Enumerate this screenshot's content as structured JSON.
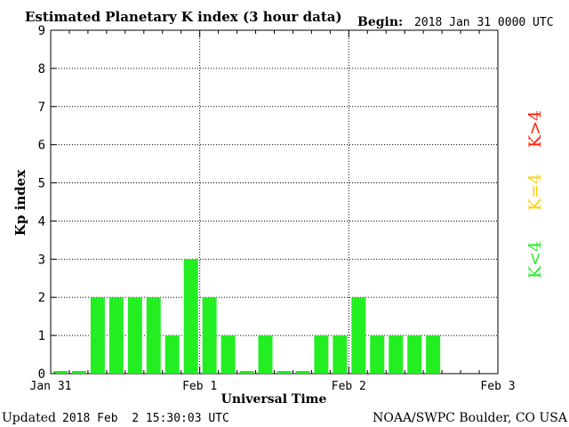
{
  "header": {
    "title": "Estimated Planetary K index (3 hour data)",
    "begin_label": "Begin:",
    "begin_value": "2018 Jan 31 0000 UTC"
  },
  "footer": {
    "updated_label": "Updated",
    "updated_value": "2018 Feb  2 15:30:03 UTC",
    "source": "NOAA/SWPC Boulder, CO USA"
  },
  "legend": {
    "high": {
      "label": "K>4",
      "color": "#ff2000"
    },
    "equal": {
      "label": "K=4",
      "color": "#ffd000"
    },
    "low": {
      "label": "K<4",
      "color": "#22ee22"
    }
  },
  "chart_data": {
    "type": "bar",
    "title": "Estimated Planetary K index (3 hour data)",
    "xlabel": "Universal Time",
    "ylabel": "Kp index",
    "ylim": [
      0,
      9
    ],
    "yticks": [
      0,
      1,
      2,
      3,
      4,
      5,
      6,
      7,
      8,
      9
    ],
    "xticks": [
      "Jan 31",
      "Feb 1",
      "Feb 2",
      "Feb 3"
    ],
    "x_range_hours": [
      0,
      72
    ],
    "bin_hours": 3,
    "bar_color": "#22ee22",
    "grid": true,
    "values": [
      0,
      0,
      2,
      2,
      2,
      2,
      1,
      3,
      2,
      1,
      0,
      1,
      0,
      0,
      1,
      1,
      2,
      1,
      1,
      1,
      1
    ]
  }
}
